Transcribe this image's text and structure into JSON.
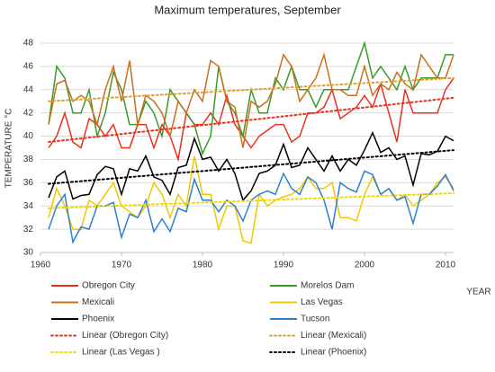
{
  "chart_data": {
    "type": "line",
    "title": "Maximum temperatures, September",
    "ylabel": "TEMPERATURE °C",
    "xlabel": "YEAR",
    "x": [
      1961,
      1962,
      1963,
      1964,
      1965,
      1966,
      1967,
      1968,
      1969,
      1970,
      1971,
      1972,
      1973,
      1974,
      1975,
      1976,
      1977,
      1978,
      1979,
      1980,
      1981,
      1982,
      1983,
      1984,
      1985,
      1986,
      1987,
      1988,
      1989,
      1990,
      1991,
      1992,
      1993,
      1994,
      1995,
      1996,
      1997,
      1998,
      1999,
      2000,
      2001,
      2002,
      2003,
      2004,
      2005,
      2006,
      2007,
      2008,
      2009,
      2010,
      2011
    ],
    "xlim": [
      1960,
      2011
    ],
    "xticks": [
      1960,
      1970,
      1980,
      1990,
      2000,
      2010
    ],
    "ylim": [
      30,
      48
    ],
    "yticks": [
      30,
      32,
      34,
      36,
      38,
      40,
      42,
      44,
      46,
      48
    ],
    "grid": true,
    "series": [
      {
        "name": "Obregon City",
        "color": "#e8321e",
        "values": [
          39,
          40,
          42,
          39.5,
          39,
          41.5,
          41,
          40,
          41,
          39,
          39,
          41,
          41,
          39,
          41,
          40,
          38,
          42,
          41,
          41,
          42,
          41,
          43.5,
          41,
          40,
          39,
          40,
          40.5,
          41,
          41,
          39.5,
          40,
          42,
          42,
          42.5,
          44,
          41.5,
          42,
          42.5,
          43.5,
          42.5,
          44.5,
          42,
          39.5,
          44,
          42,
          42,
          42,
          42,
          44,
          45
        ]
      },
      {
        "name": "Morelos Dam",
        "color": "#3a9a2a",
        "values": [
          41,
          46,
          45,
          42,
          42,
          44,
          40,
          42,
          45.5,
          44,
          41,
          41,
          43,
          42,
          40,
          44,
          43,
          42,
          41,
          38.5,
          40,
          46,
          43,
          42,
          40,
          44,
          42,
          42,
          45,
          44,
          46,
          44,
          44,
          42.5,
          44,
          44,
          44,
          44,
          46,
          48,
          45,
          46,
          45,
          44,
          46,
          44,
          45,
          45,
          45,
          47,
          47
        ]
      },
      {
        "name": "Mexicali",
        "color": "#c8701c",
        "values": [
          41,
          44.5,
          44.8,
          43,
          43.5,
          43,
          41,
          44,
          46,
          43,
          46.5,
          41,
          43.5,
          43,
          42,
          40,
          43,
          42,
          44,
          43,
          46.5,
          46,
          43,
          42.5,
          39,
          43,
          42.5,
          43,
          44.5,
          47,
          46,
          43,
          44,
          45,
          47,
          44,
          44,
          43.5,
          43.5,
          46,
          43.5,
          44.5,
          44,
          45.5,
          44.5,
          44,
          47,
          46,
          45,
          45,
          47
        ]
      },
      {
        "name": "Las Vegas",
        "color": "#f0c800",
        "values": [
          33,
          35.5,
          34,
          32,
          32,
          34.5,
          34,
          35,
          36,
          34,
          33.5,
          33,
          34,
          36,
          35,
          33,
          35,
          34,
          38.3,
          35,
          35,
          32,
          34,
          34,
          31,
          30.8,
          35,
          34,
          34.5,
          34.8,
          35,
          35.5,
          36.5,
          35.5,
          35.5,
          36,
          33,
          33,
          32.7,
          35,
          36.5,
          35,
          35.5,
          34.5,
          35,
          34,
          34.5,
          35,
          36,
          36.5,
          35.5
        ]
      },
      {
        "name": "Phoenix",
        "color": "#000000",
        "values": [
          34.7,
          36.5,
          37,
          34.6,
          34.9,
          35,
          36.7,
          37.4,
          37.2,
          35,
          37.2,
          37,
          38.3,
          36.5,
          36.2,
          35,
          37.3,
          37.5,
          39.8,
          38,
          38.2,
          37,
          38,
          36.8,
          34.5,
          35.3,
          36.8,
          37,
          37.5,
          39.3,
          37.3,
          37.5,
          39,
          38,
          37,
          38.3,
          37,
          38,
          37.5,
          38.8,
          40.3,
          38.6,
          39,
          38,
          38.3,
          35.8,
          38.5,
          38.4,
          38.7,
          40,
          39.6
        ]
      },
      {
        "name": "Tucson",
        "color": "#2f7fd0",
        "values": [
          32,
          34,
          35,
          30.9,
          32.2,
          32,
          34,
          34,
          34.3,
          31.3,
          33.3,
          33,
          34.5,
          31.8,
          32.9,
          31.8,
          33.8,
          33.5,
          36.3,
          34.5,
          34.5,
          33.5,
          34.5,
          34,
          32.7,
          34.5,
          35,
          35.3,
          35,
          36.8,
          35.5,
          35,
          36.5,
          36,
          34.5,
          32,
          36,
          35.5,
          35.2,
          37,
          36.7,
          35,
          35.5,
          34.5,
          34.8,
          32.5,
          35,
          35,
          35.7,
          36.7,
          35.3
        ]
      },
      {
        "name": "Linear (Obregon City)",
        "color": "#e8321e",
        "dashed": true,
        "x": [
          1961,
          2011
        ],
        "values": [
          39.5,
          43.3
        ]
      },
      {
        "name": "Linear (Mexicali)",
        "color": "#e0a030",
        "dashed": true,
        "x": [
          1961,
          2011
        ],
        "values": [
          43,
          45
        ]
      },
      {
        "name": "Linear (Las Vegas )",
        "color": "#f0d800",
        "dashed": true,
        "x": [
          1961,
          2011
        ],
        "values": [
          33.8,
          35.1
        ]
      },
      {
        "name": "Linear (Phoenix)",
        "color": "#000000",
        "dashed": true,
        "x": [
          1961,
          2011
        ],
        "values": [
          35.9,
          38.8
        ]
      }
    ]
  }
}
